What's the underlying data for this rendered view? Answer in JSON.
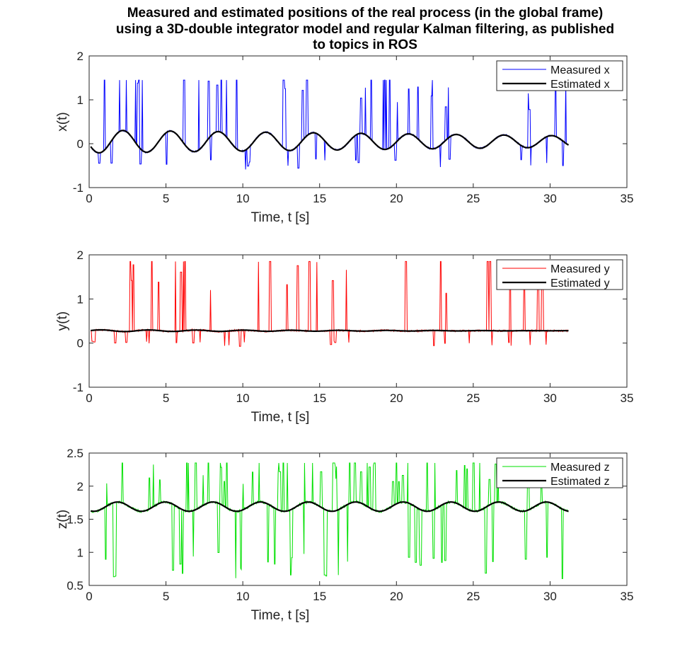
{
  "figure": {
    "title_lines": [
      "Measured and estimated positions of the real process (in the global frame)",
      "using a 3D-double integrator model and regular Kalman filtering, as published",
      "to topics in ROS"
    ]
  },
  "chart_data": [
    {
      "type": "line",
      "xlabel": "Time, t [s]",
      "ylabel": "x(t)",
      "xlim": [
        0,
        35
      ],
      "ylim": [
        -1,
        2
      ],
      "xticks": [
        0,
        5,
        10,
        15,
        20,
        25,
        30,
        35
      ],
      "yticks": [
        -1,
        0,
        1,
        2
      ],
      "legend_position": "top-right",
      "measured": {
        "name": "Measured x",
        "color": "#0000ff",
        "noise": {
          "high_value": 1.45,
          "low_value": -0.6,
          "spike_count": 60,
          "seed": 11
        }
      },
      "estimated": {
        "name": "Estimated x",
        "color": "#000000",
        "t_start": 0.1,
        "t_end": 31.2,
        "offset": 0.05,
        "amplitude_start": 0.26,
        "amplitude_end": 0.13,
        "period": 3.1,
        "phase": 3.4
      }
    },
    {
      "type": "line",
      "xlabel": "Time, t [s]",
      "ylabel": "y(t)",
      "xlim": [
        0,
        35
      ],
      "ylim": [
        -1,
        2
      ],
      "xticks": [
        0,
        5,
        10,
        15,
        20,
        25,
        30,
        35
      ],
      "yticks": [
        -1,
        0,
        1,
        2
      ],
      "legend_position": "top-right",
      "measured": {
        "name": "Measured y",
        "color": "#ff0000",
        "noise": {
          "high_value": 1.85,
          "low_value": -0.1,
          "spike_count": 55,
          "seed": 23
        }
      },
      "estimated": {
        "name": "Estimated y",
        "color": "#000000",
        "t_start": 0.1,
        "t_end": 31.2,
        "offset": 0.28,
        "amplitude_start": 0.02,
        "amplitude_end": 0.0,
        "period": 3.1,
        "phase": 0.0
      }
    },
    {
      "type": "line",
      "xlabel": "Time, t [s]",
      "ylabel": "z(t)",
      "xlim": [
        0,
        35
      ],
      "ylim": [
        0.5,
        2.5
      ],
      "xticks": [
        0,
        5,
        10,
        15,
        20,
        25,
        30,
        35
      ],
      "yticks": [
        0.5,
        1,
        1.5,
        2,
        2.5
      ],
      "legend_position": "top-right",
      "measured": {
        "name": "Measured z",
        "color": "#00e000",
        "noise": {
          "high_value": 2.35,
          "low_value": 0.6,
          "spike_count": 90,
          "seed": 37
        }
      },
      "estimated": {
        "name": "Estimated z",
        "color": "#000000",
        "t_start": 0.1,
        "t_end": 31.2,
        "offset": 1.69,
        "amplitude_start": 0.07,
        "amplitude_end": 0.07,
        "period": 3.1,
        "phase": 4.1
      }
    }
  ]
}
